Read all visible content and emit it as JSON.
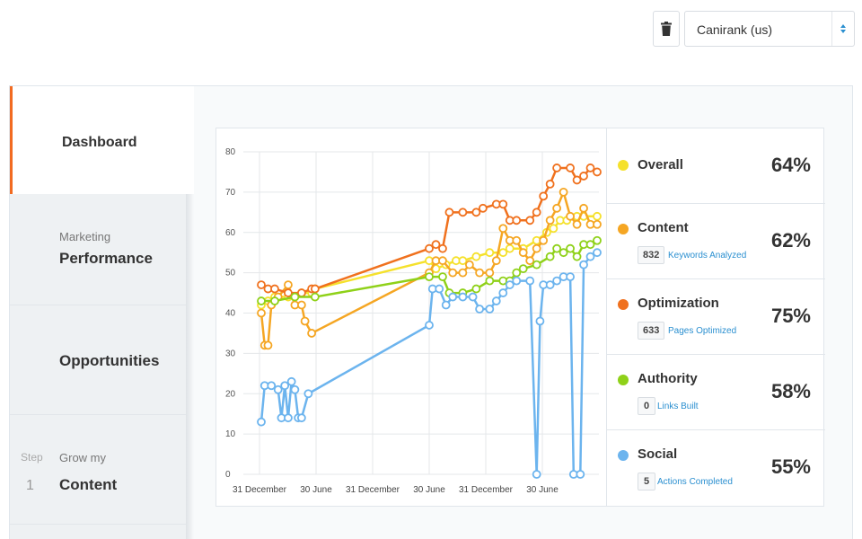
{
  "topbar": {
    "site_select": {
      "value": "Canirank (us)"
    }
  },
  "sidebar": {
    "items": [
      {
        "label": "Dashboard"
      },
      {
        "sublabel": "Marketing",
        "label": "Performance"
      },
      {
        "label": "Opportunities"
      },
      {
        "step_label": "Step",
        "step_number": "1",
        "sublabel": "Grow my",
        "label": "Content"
      }
    ]
  },
  "metrics": [
    {
      "name": "Overall",
      "percent": "64%",
      "color": "#f5e12c"
    },
    {
      "name": "Content",
      "percent": "62%",
      "color": "#f5a623",
      "count": "832",
      "caption": "Keywords Analyzed"
    },
    {
      "name": "Optimization",
      "percent": "75%",
      "color": "#f0711e",
      "count": "633",
      "caption": "Pages Optimized"
    },
    {
      "name": "Authority",
      "percent": "58%",
      "color": "#8fd119",
      "count": "0",
      "caption": "Links Built"
    },
    {
      "name": "Social",
      "percent": "55%",
      "color": "#6cb4ee",
      "count": "5",
      "caption": "Actions Completed"
    }
  ],
  "chart_data": {
    "type": "line",
    "ylim": [
      0,
      80
    ],
    "y_ticks": [
      "0",
      "10",
      "20",
      "30",
      "40",
      "50",
      "60",
      "70",
      "80"
    ],
    "x_tick_labels": [
      "31 December",
      "30 June",
      "31 December",
      "30 June",
      "31 December",
      "30 June"
    ],
    "grid": true,
    "series": [
      {
        "name": "Overall",
        "color": "#f5e12c",
        "values": [
          [
            0,
            42
          ],
          [
            0.02,
            43
          ],
          [
            0.04,
            44
          ],
          [
            0.08,
            44
          ],
          [
            0.12,
            45
          ],
          [
            0.15,
            45
          ],
          [
            0.16,
            46
          ],
          [
            0.5,
            53
          ],
          [
            0.52,
            51
          ],
          [
            0.55,
            52
          ],
          [
            0.58,
            53
          ],
          [
            0.6,
            53
          ],
          [
            0.64,
            54
          ],
          [
            0.68,
            55
          ],
          [
            0.72,
            55
          ],
          [
            0.74,
            56
          ],
          [
            0.78,
            56
          ],
          [
            0.82,
            58
          ],
          [
            0.85,
            60
          ],
          [
            0.87,
            61
          ],
          [
            0.89,
            63
          ],
          [
            0.91,
            63
          ],
          [
            0.94,
            64
          ],
          [
            0.96,
            64
          ],
          [
            1.0,
            64
          ]
        ]
      },
      {
        "name": "Content",
        "color": "#f5a623",
        "values": [
          [
            0,
            40
          ],
          [
            0.01,
            32
          ],
          [
            0.02,
            32
          ],
          [
            0.03,
            42
          ],
          [
            0.05,
            44
          ],
          [
            0.08,
            47
          ],
          [
            0.1,
            42
          ],
          [
            0.12,
            42
          ],
          [
            0.13,
            38
          ],
          [
            0.15,
            35
          ],
          [
            0.5,
            50
          ],
          [
            0.52,
            53
          ],
          [
            0.54,
            53
          ],
          [
            0.57,
            50
          ],
          [
            0.6,
            50
          ],
          [
            0.62,
            52
          ],
          [
            0.65,
            50
          ],
          [
            0.68,
            50
          ],
          [
            0.7,
            53
          ],
          [
            0.72,
            61
          ],
          [
            0.74,
            58
          ],
          [
            0.76,
            58
          ],
          [
            0.78,
            55
          ],
          [
            0.8,
            53
          ],
          [
            0.82,
            56
          ],
          [
            0.84,
            58
          ],
          [
            0.86,
            63
          ],
          [
            0.88,
            66
          ],
          [
            0.9,
            70
          ],
          [
            0.92,
            64
          ],
          [
            0.94,
            62
          ],
          [
            0.96,
            66
          ],
          [
            0.98,
            62
          ],
          [
            1.0,
            62
          ]
        ]
      },
      {
        "name": "Optimization",
        "color": "#f0711e",
        "values": [
          [
            0,
            47
          ],
          [
            0.02,
            46
          ],
          [
            0.04,
            46
          ],
          [
            0.08,
            45
          ],
          [
            0.12,
            45
          ],
          [
            0.15,
            46
          ],
          [
            0.16,
            46
          ],
          [
            0.5,
            56
          ],
          [
            0.52,
            57
          ],
          [
            0.54,
            56
          ],
          [
            0.56,
            65
          ],
          [
            0.6,
            65
          ],
          [
            0.64,
            65
          ],
          [
            0.66,
            66
          ],
          [
            0.7,
            67
          ],
          [
            0.72,
            67
          ],
          [
            0.74,
            63
          ],
          [
            0.76,
            63
          ],
          [
            0.8,
            63
          ],
          [
            0.82,
            65
          ],
          [
            0.84,
            69
          ],
          [
            0.86,
            72
          ],
          [
            0.88,
            76
          ],
          [
            0.92,
            76
          ],
          [
            0.94,
            73
          ],
          [
            0.96,
            74
          ],
          [
            0.98,
            76
          ],
          [
            1.0,
            75
          ]
        ]
      },
      {
        "name": "Authority",
        "color": "#8fd119",
        "values": [
          [
            0,
            43
          ],
          [
            0.04,
            43
          ],
          [
            0.1,
            44
          ],
          [
            0.16,
            44
          ],
          [
            0.5,
            49
          ],
          [
            0.54,
            49
          ],
          [
            0.56,
            45
          ],
          [
            0.6,
            45
          ],
          [
            0.64,
            46
          ],
          [
            0.68,
            48
          ],
          [
            0.72,
            48
          ],
          [
            0.74,
            48
          ],
          [
            0.76,
            50
          ],
          [
            0.78,
            51
          ],
          [
            0.82,
            52
          ],
          [
            0.86,
            54
          ],
          [
            0.88,
            56
          ],
          [
            0.9,
            55
          ],
          [
            0.92,
            56
          ],
          [
            0.94,
            54
          ],
          [
            0.96,
            57
          ],
          [
            0.98,
            57
          ],
          [
            1.0,
            58
          ]
        ]
      },
      {
        "name": "Social",
        "color": "#6cb4ee",
        "values": [
          [
            0,
            13
          ],
          [
            0.01,
            22
          ],
          [
            0.03,
            22
          ],
          [
            0.05,
            21
          ],
          [
            0.06,
            14
          ],
          [
            0.07,
            22
          ],
          [
            0.08,
            14
          ],
          [
            0.09,
            23
          ],
          [
            0.1,
            21
          ],
          [
            0.11,
            14
          ],
          [
            0.12,
            14
          ],
          [
            0.14,
            20
          ],
          [
            0.5,
            37
          ],
          [
            0.51,
            46
          ],
          [
            0.53,
            46
          ],
          [
            0.55,
            42
          ],
          [
            0.57,
            44
          ],
          [
            0.6,
            44
          ],
          [
            0.63,
            44
          ],
          [
            0.65,
            41
          ],
          [
            0.68,
            41
          ],
          [
            0.7,
            43
          ],
          [
            0.72,
            45
          ],
          [
            0.74,
            47
          ],
          [
            0.76,
            48
          ],
          [
            0.8,
            48
          ],
          [
            0.82,
            0
          ],
          [
            0.83,
            38
          ],
          [
            0.84,
            47
          ],
          [
            0.86,
            47
          ],
          [
            0.88,
            48
          ],
          [
            0.9,
            49
          ],
          [
            0.92,
            49
          ],
          [
            0.93,
            0
          ],
          [
            0.95,
            0
          ],
          [
            0.96,
            52
          ],
          [
            0.98,
            54
          ],
          [
            1.0,
            55
          ]
        ]
      }
    ]
  }
}
